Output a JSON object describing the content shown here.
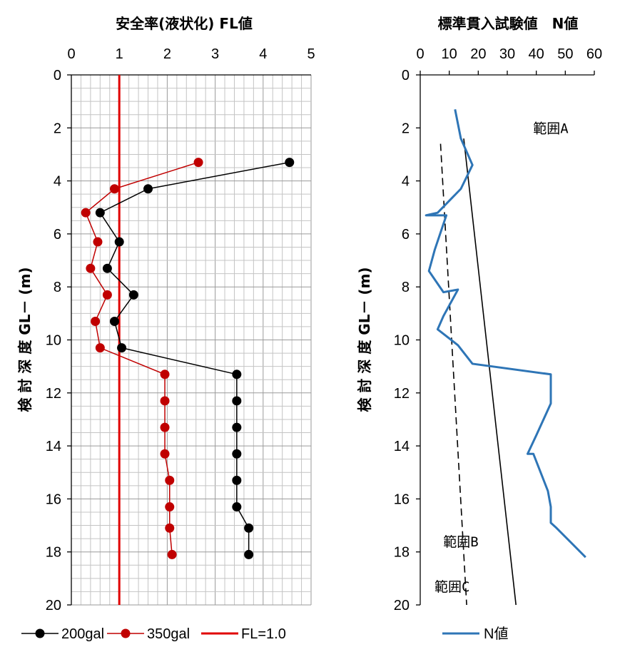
{
  "chart_data": [
    {
      "type": "line",
      "title": "安全率(液状化) FL値",
      "ylabel": "検 討 深 度  GL－ (m)",
      "xlim": [
        0,
        5
      ],
      "ylim": [
        20,
        0
      ],
      "xticks": [
        "0",
        "1",
        "2",
        "3",
        "4",
        "5"
      ],
      "yticks": [
        "0",
        "2",
        "4",
        "6",
        "8",
        "10",
        "12",
        "14",
        "16",
        "18",
        "20"
      ],
      "grid": true,
      "legend_position": "bottom",
      "series": [
        {
          "name": "200gal",
          "color": "#000000",
          "points": [
            [
              4.55,
              3.3
            ],
            [
              1.6,
              4.3
            ],
            [
              0.6,
              5.2
            ],
            [
              1.0,
              6.3
            ],
            [
              0.75,
              7.3
            ],
            [
              1.3,
              8.3
            ],
            [
              0.9,
              9.3
            ],
            [
              1.05,
              10.3
            ],
            [
              3.45,
              11.3
            ],
            [
              3.45,
              12.3
            ],
            [
              3.45,
              13.3
            ],
            [
              3.45,
              14.3
            ],
            [
              3.45,
              15.3
            ],
            [
              3.45,
              16.3
            ],
            [
              3.7,
              17.1
            ],
            [
              3.7,
              18.1
            ]
          ]
        },
        {
          "name": "350gal",
          "color": "#C00000",
          "points": [
            [
              2.65,
              3.3
            ],
            [
              0.9,
              4.3
            ],
            [
              0.3,
              5.2
            ],
            [
              0.55,
              6.3
            ],
            [
              0.4,
              7.3
            ],
            [
              0.75,
              8.3
            ],
            [
              0.5,
              9.3
            ],
            [
              0.6,
              10.3
            ],
            [
              1.95,
              11.3
            ],
            [
              1.95,
              12.3
            ],
            [
              1.95,
              13.3
            ],
            [
              1.95,
              14.3
            ],
            [
              2.05,
              15.3
            ],
            [
              2.05,
              16.3
            ],
            [
              2.05,
              17.1
            ],
            [
              2.1,
              18.1
            ]
          ]
        },
        {
          "name": "FL=1.0",
          "color": "#E00000",
          "points": [
            [
              1,
              0
            ],
            [
              1,
              20
            ]
          ]
        }
      ]
    },
    {
      "type": "line",
      "title": "標準貫入試験値　N値",
      "ylabel": "検 討 深 度  GL－ (m)",
      "xlim": [
        0,
        60
      ],
      "ylim": [
        20,
        0
      ],
      "xticks": [
        "0",
        "10",
        "20",
        "30",
        "40",
        "50",
        "60"
      ],
      "yticks": [
        "0",
        "2",
        "4",
        "6",
        "8",
        "10",
        "12",
        "14",
        "16",
        "18",
        "20"
      ],
      "grid": false,
      "legend_position": "bottom",
      "series": [
        {
          "name": "N値",
          "color": "#2E75B6",
          "points": [
            [
              12,
              1.3
            ],
            [
              14,
              2.4
            ],
            [
              18,
              3.4
            ],
            [
              14,
              4.3
            ],
            [
              6,
              5.2
            ],
            [
              2,
              5.3
            ],
            [
              9,
              5.3
            ],
            [
              5,
              6.6
            ],
            [
              3,
              7.4
            ],
            [
              8,
              8.2
            ],
            [
              13,
              8.1
            ],
            [
              8,
              9.1
            ],
            [
              6,
              9.6
            ],
            [
              13,
              10.2
            ],
            [
              18,
              10.9
            ],
            [
              45,
              11.3
            ],
            [
              45,
              12.4
            ],
            [
              40,
              13.6
            ],
            [
              37,
              14.3
            ],
            [
              39,
              14.3
            ],
            [
              44,
              15.7
            ],
            [
              45,
              16.3
            ],
            [
              45,
              16.9
            ],
            [
              47,
              17.1
            ],
            [
              57,
              18.2
            ]
          ]
        },
        {
          "name": "",
          "color": "#000000",
          "dash": false,
          "points": [
            [
              15,
              2.4
            ],
            [
              33,
              20
            ]
          ]
        },
        {
          "name": "",
          "color": "#000000",
          "dash": true,
          "points": [
            [
              7,
              2.6
            ],
            [
              16,
              20
            ]
          ]
        }
      ],
      "annotations": [
        {
          "text": "範囲A",
          "x": 45,
          "y": 2.0
        },
        {
          "text": "範囲B",
          "x": 14,
          "y": 17.6
        },
        {
          "text": "範囲C",
          "x": 11,
          "y": 19.3
        }
      ]
    }
  ]
}
